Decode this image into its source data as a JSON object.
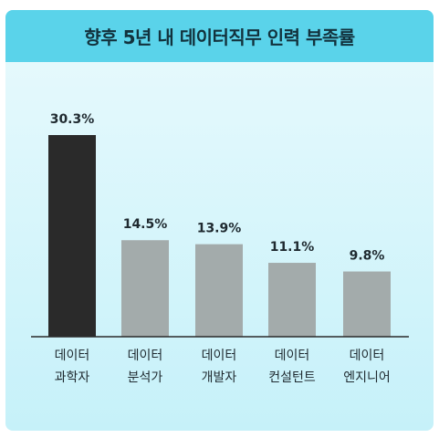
{
  "colors": {
    "background": "#ffffff",
    "card_top": "#e9fafd",
    "card_bottom": "#c6f1f9",
    "header": "#5ad3ea",
    "highlight_bar": "#2a2a2a",
    "bar": "#a3abab",
    "text": "#1f2a30"
  },
  "chart_data": {
    "type": "bar",
    "title": "향후 5년 내 데이터직무 인력 부족률",
    "categories": [
      [
        "데이터",
        "과학자"
      ],
      [
        "데이터",
        "분석가"
      ],
      [
        "데이터",
        "개발자"
      ],
      [
        "데이터",
        "컨설턴트"
      ],
      [
        "데이터",
        "엔지니어"
      ]
    ],
    "values": [
      30.3,
      14.5,
      13.9,
      11.1,
      9.8
    ],
    "value_labels": [
      "30.3%",
      "14.5%",
      "13.9%",
      "11.1%",
      "9.8%"
    ],
    "highlight_index": 0,
    "ylim": [
      0,
      30.3
    ],
    "grid": false,
    "legend": "none"
  }
}
